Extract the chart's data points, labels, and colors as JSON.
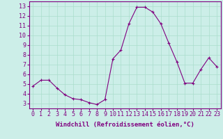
{
  "x": [
    0,
    1,
    2,
    3,
    4,
    5,
    6,
    7,
    8,
    9,
    10,
    11,
    12,
    13,
    14,
    15,
    16,
    17,
    18,
    19,
    20,
    21,
    22,
    23
  ],
  "y": [
    4.8,
    5.4,
    5.4,
    4.6,
    3.9,
    3.5,
    3.4,
    3.1,
    2.9,
    3.4,
    7.6,
    8.5,
    11.2,
    12.9,
    12.9,
    12.4,
    11.2,
    9.2,
    7.3,
    5.1,
    5.1,
    6.5,
    7.7,
    6.8
  ],
  "line_color": "#800080",
  "marker": "P",
  "marker_size": 2.5,
  "bg_color": "#cceee8",
  "grid_color": "#aaddcc",
  "xlabel": "Windchill (Refroidissement éolien,°C)",
  "xlim": [
    -0.5,
    23.5
  ],
  "ylim": [
    2.5,
    13.5
  ],
  "yticks": [
    3,
    4,
    5,
    6,
    7,
    8,
    9,
    10,
    11,
    12,
    13
  ],
  "xticks": [
    0,
    1,
    2,
    3,
    4,
    5,
    6,
    7,
    8,
    9,
    10,
    11,
    12,
    13,
    14,
    15,
    16,
    17,
    18,
    19,
    20,
    21,
    22,
    23
  ],
  "axis_label_color": "#800080",
  "tick_color": "#800080",
  "spine_color": "#800080",
  "xlabel_fontsize": 6.5,
  "tick_fontsize": 6.0
}
